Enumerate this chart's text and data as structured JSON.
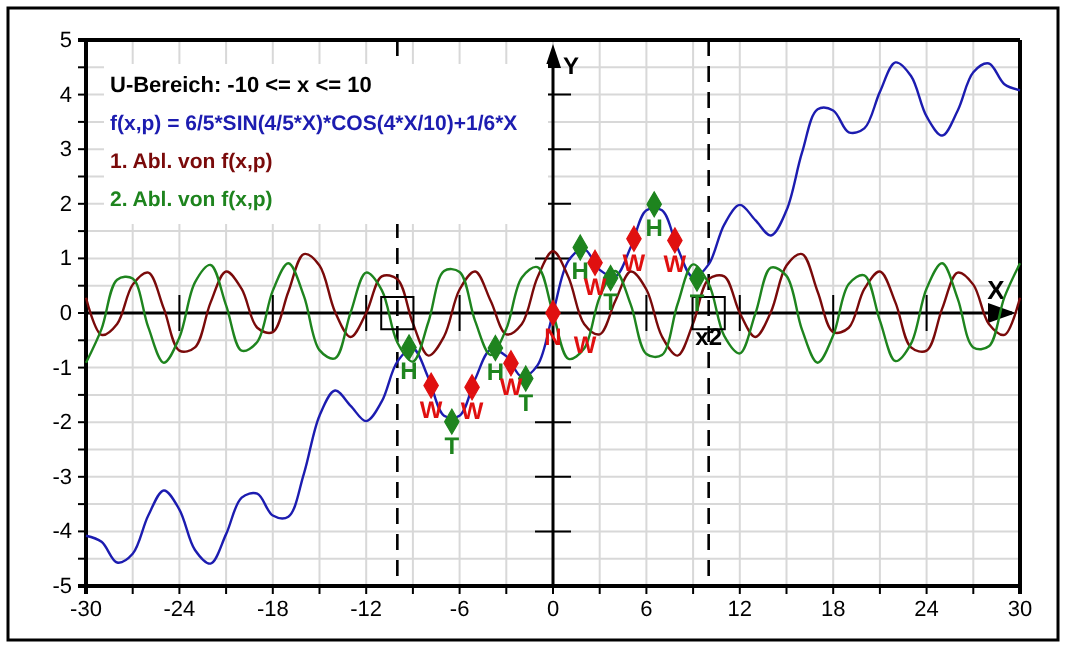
{
  "chart_data": {
    "type": "line",
    "xlabel": "X",
    "ylabel": "Y",
    "x": [
      -30,
      -29,
      -28,
      -27,
      -26,
      -25,
      -24,
      -23,
      -22,
      -21,
      -20,
      -19,
      -18,
      -17,
      -16,
      -15,
      -14,
      -13,
      -12,
      -11,
      -10,
      -9,
      -8,
      -7,
      -6,
      -5,
      -4,
      -3,
      -2,
      -1,
      0,
      1,
      2,
      3,
      4,
      5,
      6,
      7,
      8,
      9,
      10,
      11,
      12,
      13,
      14,
      15,
      16,
      17,
      18,
      19,
      20,
      21,
      22,
      23,
      24,
      25,
      26,
      27,
      28,
      29,
      30
    ],
    "series": [
      {
        "name": "f(x,p) = 6/5*SIN(4/5*X)*COS(4*X/10)+1/6*X",
        "color": "#1c1cb0",
        "marker": "none",
        "values": [
          -4.08,
          -4.19,
          -4.57,
          -4.41,
          -3.71,
          -3.25,
          -3.6,
          -4.34,
          -4.59,
          -4.05,
          -3.38,
          -3.31,
          -3.71,
          -3.73,
          -2.94,
          -1.88,
          -1.42,
          -1.7,
          -1.98,
          -1.62,
          -0.89,
          -0.65,
          -1.19,
          -1.88,
          -1.88,
          -1.21,
          -0.67,
          -0.79,
          -1.17,
          -0.96,
          0,
          0.96,
          1.17,
          0.79,
          0.67,
          1.21,
          1.88,
          1.88,
          1.19,
          0.65,
          0.89,
          1.62,
          1.98,
          1.7,
          1.42,
          1.88,
          2.94,
          3.73,
          3.71,
          3.31,
          3.38,
          4.05,
          4.59,
          4.34,
          3.6,
          3.25,
          3.71,
          4.41,
          4.57,
          4.19,
          4.08
        ]
      },
      {
        "name": "1. Abl. von f(x,p)",
        "color": "#7a0a0a",
        "marker": "none",
        "values": [
          0.28,
          -0.4,
          -0.2,
          0.52,
          0.74,
          0.08,
          -0.69,
          -0.63,
          0.19,
          0.76,
          0.44,
          -0.27,
          -0.35,
          0.39,
          1.08,
          0.87,
          0.02,
          -0.44,
          0.0,
          0.67,
          0.62,
          -0.19,
          -0.78,
          -0.43,
          0.43,
          0.76,
          0.22,
          -0.39,
          -0.2,
          0.65,
          1.13,
          0.65,
          -0.2,
          -0.39,
          0.22,
          0.76,
          0.43,
          -0.43,
          -0.78,
          -0.19,
          0.62,
          0.67,
          0.0,
          -0.44,
          0.02,
          0.87,
          1.08,
          0.39,
          -0.35,
          -0.27,
          0.44,
          0.76,
          0.19,
          -0.63,
          -0.69,
          0.08,
          0.74,
          0.52,
          -0.2,
          -0.4,
          0.28
        ]
      },
      {
        "name": "2. Abl. von f(x,p)",
        "color": "#1e841e",
        "marker": "none",
        "values": [
          -0.91,
          -0.29,
          0.61,
          0.63,
          -0.26,
          -0.91,
          -0.45,
          0.56,
          0.88,
          0.14,
          -0.69,
          -0.53,
          0.41,
          0.91,
          0.31,
          -0.68,
          -0.83,
          0.01,
          0.74,
          0.42,
          -0.54,
          -0.89,
          -0.16,
          0.77,
          0.75,
          -0.15,
          -0.77,
          -0.29,
          0.65,
          0.84,
          0,
          -0.84,
          -0.65,
          0.29,
          0.77,
          0.15,
          -0.75,
          -0.77,
          0.16,
          0.89,
          0.54,
          -0.42,
          -0.74,
          -0.01,
          0.83,
          0.68,
          -0.31,
          -0.91,
          -0.41,
          0.53,
          0.69,
          -0.14,
          -0.88,
          -0.56,
          0.45,
          0.91,
          0.26,
          -0.63,
          -0.61,
          0.29,
          0.91
        ]
      },
      {
        "type": "scatter",
        "color": "#1e841e",
        "marker": "diamond",
        "x": [
          -9.25,
          -6.5,
          -3.7,
          -1.75,
          1.75,
          3.7,
          6.5,
          9.25
        ],
        "values": [
          -0.63,
          -1.99,
          -0.64,
          -1.2,
          1.2,
          0.64,
          1.99,
          0.63
        ]
      },
      {
        "type": "scatter",
        "color": "#e01010",
        "marker": "diamond",
        "x": [
          -7.83,
          -5.2,
          -2.7,
          0,
          2.7,
          5.2,
          7.83
        ],
        "values": [
          -1.33,
          -1.36,
          -0.92,
          0,
          0.92,
          1.36,
          1.33
        ]
      },
      {
        "type": "scatter",
        "color": "#000000",
        "marker": "square",
        "x": [
          -10,
          10
        ],
        "values": [
          0,
          0
        ]
      }
    ],
    "xlim": [
      -30,
      30
    ],
    "xticks": [
      -30,
      {
        "value": -27,
        "label": null
      },
      -24,
      {
        "value": -21,
        "label": null
      },
      -18,
      {
        "value": -15,
        "label": null
      },
      -12,
      {
        "value": -9,
        "label": null
      },
      -6,
      {
        "value": -3,
        "label": null
      },
      0,
      {
        "value": 3,
        "label": null
      },
      6,
      {
        "value": 9,
        "label": null
      },
      12,
      {
        "value": 15,
        "label": null
      },
      18,
      {
        "value": 21,
        "label": null
      },
      24,
      {
        "value": 27,
        "label": null
      },
      30
    ],
    "ylim": [
      -5,
      5
    ],
    "yticks": [
      -5,
      {
        "value": -4.5,
        "label": null
      },
      -4,
      {
        "value": -3.5,
        "label": null
      },
      -3,
      {
        "value": -2.5,
        "label": null
      },
      -2,
      {
        "value": -1.5,
        "label": null
      },
      -1,
      {
        "value": -0.5,
        "label": null
      },
      0,
      {
        "value": 0.5,
        "label": null
      },
      1,
      {
        "value": 1.5,
        "label": null
      },
      2,
      {
        "value": 2.5,
        "label": null
      },
      3,
      {
        "value": 3.5,
        "label": null
      },
      4,
      {
        "value": 4.5,
        "label": null
      },
      5
    ],
    "grid": true,
    "legend": "top left",
    "ref_lines": [
      {
        "axis": "x",
        "value": -10,
        "color": "#000000",
        "line_style": "dashed"
      },
      {
        "axis": "x",
        "value": 10,
        "color": "#000000",
        "line_style": "dashed"
      }
    ],
    "annotations": [
      "U-Bereich: -10 <= x <= 10",
      {
        "text": "H",
        "x": -9.25,
        "y": -0.63
      },
      {
        "text": "T",
        "x": -6.5,
        "y": -1.99
      },
      {
        "text": "H",
        "x": -3.7,
        "y": -0.64
      },
      {
        "text": "T",
        "x": -1.75,
        "y": -1.2
      },
      {
        "text": "H",
        "x": 1.75,
        "y": 1.2
      },
      {
        "text": "T",
        "x": 3.7,
        "y": 0.64
      },
      {
        "text": "H",
        "x": 6.5,
        "y": 1.99
      },
      {
        "text": "T",
        "x": 9.25,
        "y": 0.63
      },
      {
        "text": "W",
        "x": -7.83,
        "y": -1.33
      },
      {
        "text": "W",
        "x": -5.2,
        "y": -1.36
      },
      {
        "text": "W",
        "x": -2.7,
        "y": -0.92
      },
      {
        "text": "N",
        "x": 0,
        "y": 0
      },
      {
        "text": "W",
        "x": 0,
        "y": 0
      },
      {
        "text": "W",
        "x": 2.7,
        "y": 0.92
      },
      {
        "text": "W",
        "x": 5.2,
        "y": 1.36
      },
      {
        "text": "W",
        "x": 7.83,
        "y": 1.33
      },
      {
        "text": "x2",
        "x": 10,
        "y": 0
      }
    ]
  }
}
